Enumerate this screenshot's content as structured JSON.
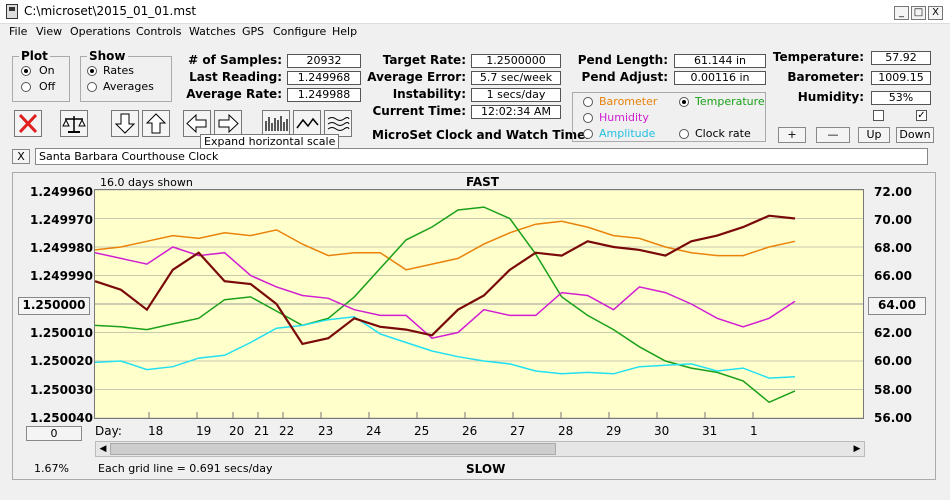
{
  "window": {
    "title": "C:\\microset\\2015_01_01.mst",
    "min": "_",
    "max": "□",
    "close": "X"
  },
  "menu": [
    "File",
    "View",
    "Operations",
    "Controls",
    "Watches",
    "GPS",
    "Configure",
    "Help"
  ],
  "plot_group": {
    "title": "Plot",
    "on": "On",
    "off": "Off"
  },
  "show_group": {
    "title": "Show",
    "rates": "Rates",
    "averages": "Averages"
  },
  "stats": {
    "samples_label": "# of Samples:",
    "samples": "20932",
    "last_label": "Last Reading:",
    "last": "1.249968",
    "avg_label": "Average Rate:",
    "avg": "1.249988",
    "target_label": "Target Rate:",
    "target": "1.2500000",
    "error_label": "Average Error:",
    "error": "5.7 sec/week",
    "instab_label": "Instability:",
    "instab": "1 secs/day",
    "time_label": "Current Time:",
    "time": "12:02:34 AM",
    "pend_len_label": "Pend Length:",
    "pend_len": "61.144 in",
    "pend_adj_label": "Pend Adjust:",
    "pend_adj": "0.00116 in",
    "temp_label": "Temperature:",
    "temp": "57.92",
    "baro_label": "Barometer:",
    "baro": "1009.15",
    "hum_label": "Humidity:",
    "hum": "53%"
  },
  "sensor_options": {
    "barometer": "Barometer",
    "temperature": "Temperature",
    "humidity": "Humidity",
    "amplitude": "Amplitude",
    "clock_rate": "Clock rate"
  },
  "app_caption": "MicroSet Clock and Watch Timer",
  "tooltip": "Expand horizontal scale",
  "small_buttons": {
    "plus": "+",
    "minus": "—",
    "up": "Up",
    "down": "Down"
  },
  "clock_name": "Santa Barbara Courthouse Clock",
  "close_x": "X",
  "colors": {
    "barometer": "#e8820a",
    "temperature": "#1aa01a",
    "humidity": "#d21ed2",
    "amplitude": "#22e0f0",
    "clock_rate": "#7a0a0a",
    "plot_bg": "#ffffcc"
  },
  "chart_data": {
    "type": "line",
    "top_label": "FAST",
    "bottom_label": "SLOW",
    "days_shown": "16.0 days shown",
    "grid_note": "Each grid line = 0.691 secs/day",
    "percent": "1.67%",
    "left_axis_ticks": [
      "1.249960",
      "1.249970",
      "1.249980",
      "1.249990",
      "1.250000",
      "1.250010",
      "1.250020",
      "1.250030",
      "1.250040"
    ],
    "left_axis_center_button": "1.250000",
    "right_axis_ticks": [
      "72.00",
      "70.00",
      "68.00",
      "66.00",
      "64.00",
      "62.00",
      "60.00",
      "58.00",
      "56.00"
    ],
    "right_axis_center_button": "64.00",
    "x_title": "Day:",
    "x_ticks": [
      "18",
      "19",
      "20",
      "21",
      "22",
      "23",
      "24",
      "25",
      "26",
      "27",
      "28",
      "29",
      "30",
      "31",
      "1"
    ],
    "zero_button": "0",
    "series": [
      {
        "name": "Barometer",
        "y": [
          1.249981,
          1.24998,
          1.249978,
          1.249976,
          1.249977,
          1.249975,
          1.249976,
          1.249974,
          1.249979,
          1.249983,
          1.249982,
          1.249982,
          1.249988,
          1.249986,
          1.249984,
          1.249979,
          1.249975,
          1.249972,
          1.249971,
          1.249973,
          1.249976,
          1.249977,
          1.24998,
          1.249982,
          1.249983,
          1.249983,
          1.24998,
          1.249978
        ]
      },
      {
        "name": "Temperature",
        "y": [
          62.5,
          62.4,
          62.2,
          62.6,
          63.0,
          64.3,
          64.5,
          63.5,
          62.5,
          63.0,
          64.5,
          66.5,
          68.5,
          69.4,
          70.6,
          70.8,
          70.0,
          67.5,
          64.5,
          63.2,
          62.2,
          61.0,
          60.0,
          59.5,
          59.2,
          58.6,
          57.1,
          57.9
        ]
      },
      {
        "name": "Humidity",
        "y": [
          1.249982,
          1.249984,
          1.249986,
          1.24998,
          1.249983,
          1.249982,
          1.24999,
          1.249994,
          1.249997,
          1.249998,
          1.250002,
          1.250004,
          1.250004,
          1.250012,
          1.25001,
          1.250002,
          1.250004,
          1.250004,
          1.249996,
          1.249997,
          1.250002,
          1.249994,
          1.249996,
          1.25,
          1.250005,
          1.250008,
          1.250005,
          1.249999
        ]
      },
      {
        "name": "Amplitude",
        "y": [
          59.9,
          60.0,
          59.4,
          59.6,
          60.2,
          60.4,
          61.3,
          62.3,
          62.5,
          62.9,
          63.1,
          61.9,
          61.3,
          60.7,
          60.3,
          60.0,
          59.8,
          59.3,
          59.1,
          59.2,
          59.1,
          59.6,
          59.7,
          59.8,
          59.3,
          59.5,
          58.8,
          58.9
        ]
      },
      {
        "name": "Clock rate",
        "y": [
          1.249992,
          1.249995,
          1.250002,
          1.249988,
          1.249982,
          1.249992,
          1.249993,
          1.25,
          1.250014,
          1.250012,
          1.250005,
          1.250008,
          1.250009,
          1.250011,
          1.250002,
          1.249997,
          1.249988,
          1.249982,
          1.249983,
          1.249978,
          1.24998,
          1.249981,
          1.249983,
          1.249978,
          1.249976,
          1.249973,
          1.249969,
          1.24997
        ]
      }
    ]
  }
}
